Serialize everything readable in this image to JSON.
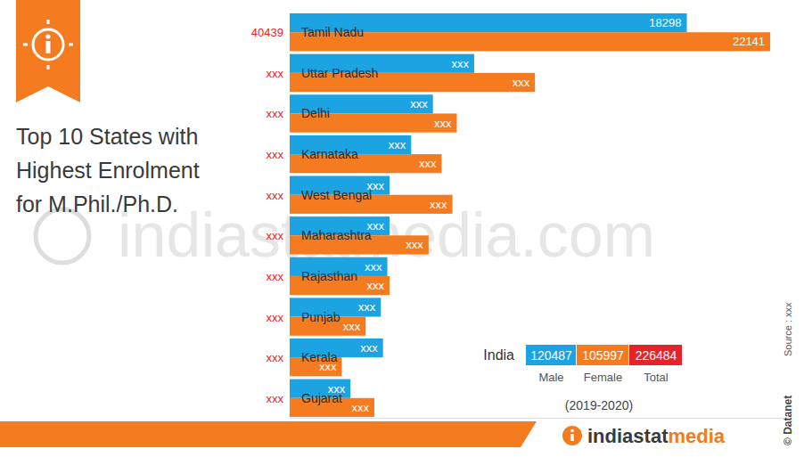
{
  "chart_data": {
    "type": "bar",
    "orientation": "horizontal",
    "title": "Top 10 States with Highest Enrolment for M.Phil./Ph.D.",
    "subtitle": "(2019-2020)",
    "categories": [
      "Tamil Nadu",
      "Uttar Pradesh",
      "Delhi",
      "Karnataka",
      "West Bengal",
      "Maharashtra",
      "Rajasthan",
      "Punjab",
      "Kerala",
      "Gujarat"
    ],
    "series": [
      {
        "name": "Male",
        "color": "#1ca3e2",
        "values": [
          18298,
          8500,
          6600,
          5600,
          4600,
          4600,
          4500,
          4200,
          4300,
          2800
        ],
        "value_labels": [
          "18298",
          "xxx",
          "xxx",
          "xxx",
          "xxx",
          "xxx",
          "xxx",
          "xxx",
          "xxx",
          "xxx"
        ]
      },
      {
        "name": "Female",
        "color": "#f47b20",
        "values": [
          22141,
          11300,
          7700,
          7000,
          7500,
          6400,
          4600,
          3500,
          2400,
          3900
        ],
        "value_labels": [
          "22141",
          "xxx",
          "xxx",
          "xxx",
          "xxx",
          "xxx",
          "xxx",
          "xxx",
          "xxx",
          "xxx"
        ]
      }
    ],
    "total_labels": [
      "40439",
      "xxx",
      "xxx",
      "xxx",
      "xxx",
      "xxx",
      "xxx",
      "xxx",
      "xxx",
      "xxx"
    ],
    "total_color": "#e3242b",
    "xlim": [
      0,
      23000
    ],
    "xticks": [],
    "tick_labels": false,
    "grid": false,
    "data_labels": true,
    "india": {
      "label": "India",
      "values": [
        120487,
        105997,
        226484
      ],
      "total_name": "Total"
    },
    "source": "Source : xxx",
    "credit": "© Datanet",
    "brand": "indiastatmedia",
    "watermark": "indiastatmedia.com"
  }
}
